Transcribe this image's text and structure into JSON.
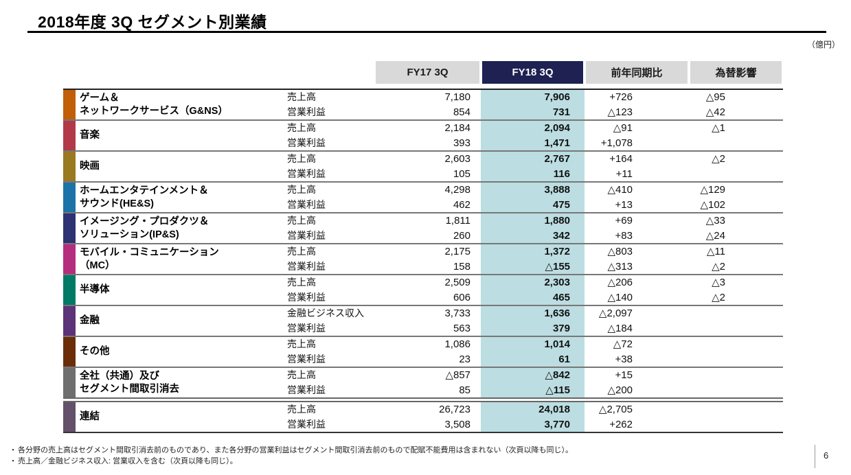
{
  "title": "2018年度 3Q セグメント別業績",
  "unit_label": "（億円）",
  "page_number": "6",
  "colors": {
    "header_navy": "#1e2152",
    "header_gray": "#d9d9d9",
    "fy18_highlight": "#bcdde2"
  },
  "table": {
    "columns": {
      "fy17": "FY17 3Q",
      "fy18": "FY18 3Q",
      "yoy": "前年同期比",
      "fx": "為替影響"
    },
    "segments": [
      {
        "name": "ゲーム＆\nネットワークサービス（G&NS）",
        "color": "#c05f08",
        "rows": [
          {
            "metric": "売上高",
            "fy17": "7,180",
            "fy18": "7,906",
            "yoy": "+726",
            "fx": "△95"
          },
          {
            "metric": "営業利益",
            "fy17": "854",
            "fy18": "731",
            "yoy": "△123",
            "fx": "△42"
          }
        ]
      },
      {
        "name": "音楽",
        "color": "#b23a48",
        "rows": [
          {
            "metric": "売上高",
            "fy17": "2,184",
            "fy18": "2,094",
            "yoy": "△91",
            "fx": "△1"
          },
          {
            "metric": "営業利益",
            "fy17": "393",
            "fy18": "1,471",
            "yoy": "+1,078",
            "fx": ""
          }
        ]
      },
      {
        "name": "映画",
        "color": "#9a7a20",
        "rows": [
          {
            "metric": "売上高",
            "fy17": "2,603",
            "fy18": "2,767",
            "yoy": "+164",
            "fx": "△2"
          },
          {
            "metric": "営業利益",
            "fy17": "105",
            "fy18": "116",
            "yoy": "+11",
            "fx": ""
          }
        ]
      },
      {
        "name": "ホームエンタテインメント＆\nサウンド(HE&S)",
        "color": "#1c73a8",
        "rows": [
          {
            "metric": "売上高",
            "fy17": "4,298",
            "fy18": "3,888",
            "yoy": "△410",
            "fx": "△129"
          },
          {
            "metric": "営業利益",
            "fy17": "462",
            "fy18": "475",
            "yoy": "+13",
            "fx": "△102"
          }
        ]
      },
      {
        "name": "イメージング・プロダクツ＆\nソリューション(IP&S)",
        "color": "#2c3272",
        "rows": [
          {
            "metric": "売上高",
            "fy17": "1,811",
            "fy18": "1,880",
            "yoy": "+69",
            "fx": "△33"
          },
          {
            "metric": "営業利益",
            "fy17": "260",
            "fy18": "342",
            "yoy": "+83",
            "fx": "△24"
          }
        ]
      },
      {
        "name": "モバイル・コミュニケーション\n（MC）",
        "color": "#b52e7d",
        "rows": [
          {
            "metric": "売上高",
            "fy17": "2,175",
            "fy18": "1,372",
            "yoy": "△803",
            "fx": "△11"
          },
          {
            "metric": "営業利益",
            "fy17": "158",
            "fy18": "△155",
            "yoy": "△313",
            "fx": "△2"
          }
        ]
      },
      {
        "name": "半導体",
        "color": "#007a66",
        "rows": [
          {
            "metric": "売上高",
            "fy17": "2,509",
            "fy18": "2,303",
            "yoy": "△206",
            "fx": "△3"
          },
          {
            "metric": "営業利益",
            "fy17": "606",
            "fy18": "465",
            "yoy": "△140",
            "fx": "△2"
          }
        ]
      },
      {
        "name": "金融",
        "color": "#5c3278",
        "rows": [
          {
            "metric": "金融ビジネス収入",
            "fy17": "3,733",
            "fy18": "1,636",
            "yoy": "△2,097",
            "fx": ""
          },
          {
            "metric": "営業利益",
            "fy17": "563",
            "fy18": "379",
            "yoy": "△184",
            "fx": ""
          }
        ]
      },
      {
        "name": "その他",
        "color": "#6b2d08",
        "rows": [
          {
            "metric": "売上高",
            "fy17": "1,086",
            "fy18": "1,014",
            "yoy": "△72",
            "fx": ""
          },
          {
            "metric": "営業利益",
            "fy17": "23",
            "fy18": "61",
            "yoy": "+38",
            "fx": ""
          }
        ]
      },
      {
        "name": "全社（共通）及び\nセグメント間取引消去",
        "color": "#6f6f6f",
        "rows": [
          {
            "metric": "売上高",
            "fy17": "△857",
            "fy18": "△842",
            "yoy": "+15",
            "fx": ""
          },
          {
            "metric": "営業利益",
            "fy17": "85",
            "fy18": "△115",
            "yoy": "△200",
            "fx": ""
          }
        ]
      },
      {
        "name": "連結",
        "color": "#64506a",
        "rows": [
          {
            "metric": "売上高",
            "fy17": "26,723",
            "fy18": "24,018",
            "yoy": "△2,705",
            "fx": ""
          },
          {
            "metric": "営業利益",
            "fy17": "3,508",
            "fy18": "3,770",
            "yoy": "+262",
            "fx": ""
          }
        ]
      }
    ]
  },
  "footnotes": {
    "bullet": "・",
    "items": [
      "各分野の売上高はセグメント間取引消去前のものであり、また各分野の営業利益はセグメント間取引消去前のもので配賦不能費用は含まれない（次頁以降も同じ）。",
      "売上高／金融ビジネス収入: 営業収入を含む（次頁以降も同じ）。"
    ]
  }
}
